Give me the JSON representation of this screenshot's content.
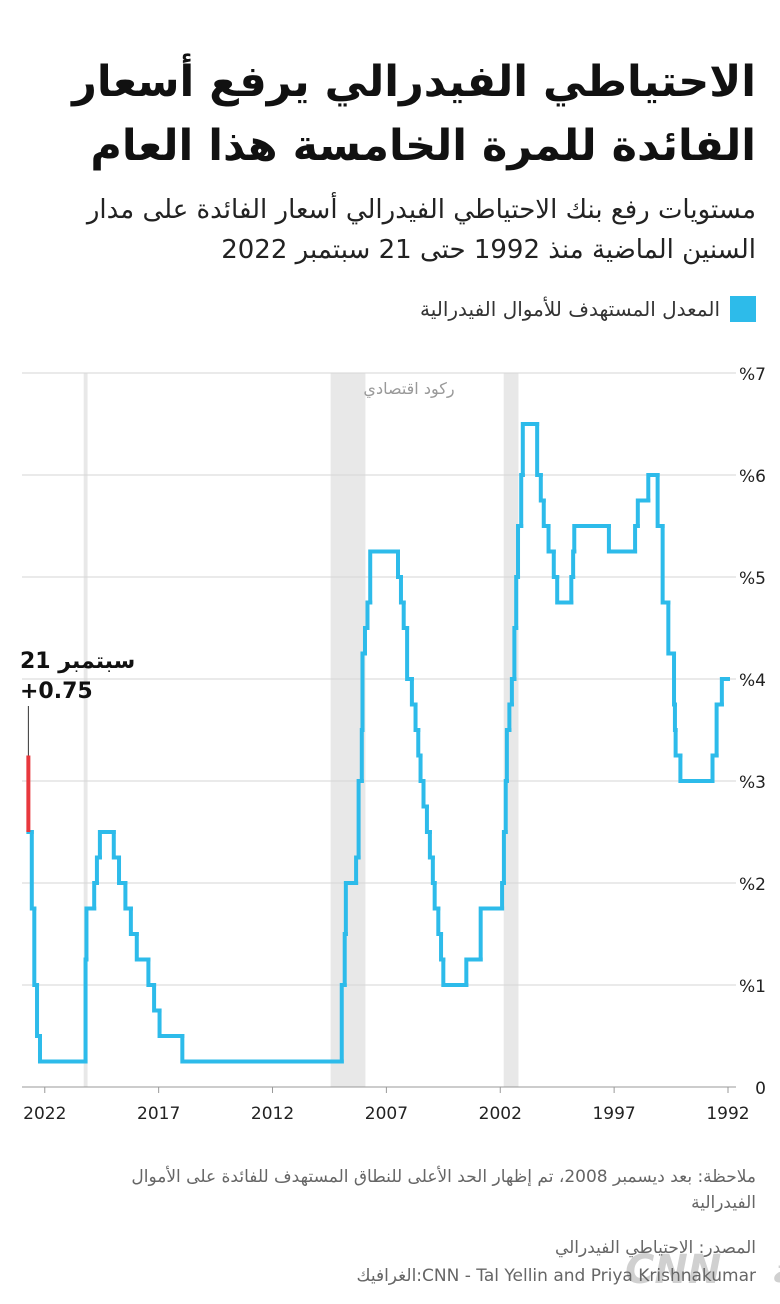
{
  "chart_data": {
    "type": "step-line",
    "title": "الاحتياطي الفيدرالي يرفع أسعار الفائدة للمرة الخامسة هذا العام",
    "subtitle": "مستويات رفع بنك الاحتياطي الفيدرالي أسعار الفائدة على مدار السنين الماضية منذ 1992 حتى 21 سبتمبر 2022",
    "series": [
      {
        "name": "المعدل المستهدف للأموال الفيدرالية",
        "color": "#2dbbea",
        "x": [
          1992.0,
          1992.27,
          1992.5,
          1992.68,
          1994.09,
          1994.3,
          1994.33,
          1994.37,
          1994.62,
          1994.87,
          1995.09,
          1995.5,
          1995.96,
          1996.08,
          1997.23,
          1998.75,
          1998.8,
          1998.88,
          1999.5,
          1999.65,
          1999.88,
          2000.09,
          2000.22,
          2000.38,
          2001.01,
          2001.08,
          2001.22,
          2001.3,
          2001.38,
          2001.49,
          2001.6,
          2001.71,
          2001.76,
          2001.84,
          2001.92,
          2002.86,
          2003.49,
          2004.5,
          2004.6,
          2004.72,
          2004.88,
          2004.96,
          2005.09,
          2005.22,
          2005.37,
          2005.5,
          2005.6,
          2005.72,
          2005.88,
          2006.09,
          2006.24,
          2006.36,
          2006.49,
          2007.71,
          2007.83,
          2007.94,
          2008.05,
          2008.08,
          2008.22,
          2008.33,
          2008.78,
          2008.83,
          2008.96,
          2015.96,
          2016.96,
          2017.2,
          2017.45,
          2017.96,
          2018.22,
          2018.46,
          2018.74,
          2018.97,
          2019.58,
          2019.71,
          2019.83,
          2020.17,
          2020.21,
          2022.21,
          2022.34,
          2022.46,
          2022.57
        ],
        "values": [
          4.0,
          3.75,
          3.25,
          3.0,
          3.25,
          3.5,
          3.75,
          4.25,
          4.75,
          5.5,
          6.0,
          5.75,
          5.5,
          5.25,
          5.5,
          5.25,
          5.0,
          4.75,
          5.0,
          5.25,
          5.5,
          5.75,
          6.0,
          6.5,
          6.0,
          5.5,
          5.0,
          4.5,
          4.0,
          3.75,
          3.5,
          3.0,
          2.5,
          2.0,
          1.75,
          1.25,
          1.0,
          1.25,
          1.5,
          1.75,
          2.0,
          2.25,
          2.5,
          2.75,
          3.0,
          3.25,
          3.5,
          3.75,
          4.0,
          4.5,
          4.75,
          5.0,
          5.25,
          4.75,
          4.5,
          4.25,
          3.5,
          3.0,
          2.25,
          2.0,
          1.5,
          1.0,
          0.25,
          0.5,
          0.75,
          1.0,
          1.25,
          1.5,
          1.75,
          2.0,
          2.25,
          2.5,
          2.25,
          2.0,
          1.75,
          1.25,
          0.25,
          0.5,
          1.0,
          1.75,
          2.5
        ]
      }
    ],
    "highlight": {
      "color": "#e8383d",
      "x": [
        2022.72
      ],
      "values": [
        3.25
      ]
    },
    "annotation": {
      "date": "سبتمبر 21",
      "change": "+0.75"
    },
    "recessions": [
      [
        2020.12,
        2020.29
      ],
      [
        2007.92,
        2009.45
      ],
      [
        2001.2,
        2001.85
      ]
    ],
    "recession_label": "ركود اقتصادي",
    "xlim": [
      2023,
      1992
    ],
    "xticks": [
      2022,
      2017,
      2012,
      2007,
      2002,
      1997,
      1992
    ],
    "ylim": [
      0,
      7
    ],
    "yticks": [
      0,
      {
        "value": 1,
        "label": "%1"
      },
      {
        "value": 2,
        "label": "%2"
      },
      {
        "value": 3,
        "label": "%3"
      },
      {
        "value": 4,
        "label": "%4"
      },
      {
        "value": 5,
        "label": "%5"
      },
      {
        "value": 6,
        "label": "%6"
      },
      {
        "value": 7,
        "label": "%7"
      }
    ],
    "grid": true,
    "note": "ملاحظة: بعد ديسمبر 2008، تم إظهار الحد الأعلى للنطاق المستهدف للفائدة على الأموال الفيدرالية",
    "source": "المصدر: الاحتياطي الفيدرالي",
    "credit": "الغرافيك:CNN - Tal Yellin and Priya Krishnakumar",
    "logo": {
      "latin": "CNN",
      "arabic": "العربية"
    }
  }
}
